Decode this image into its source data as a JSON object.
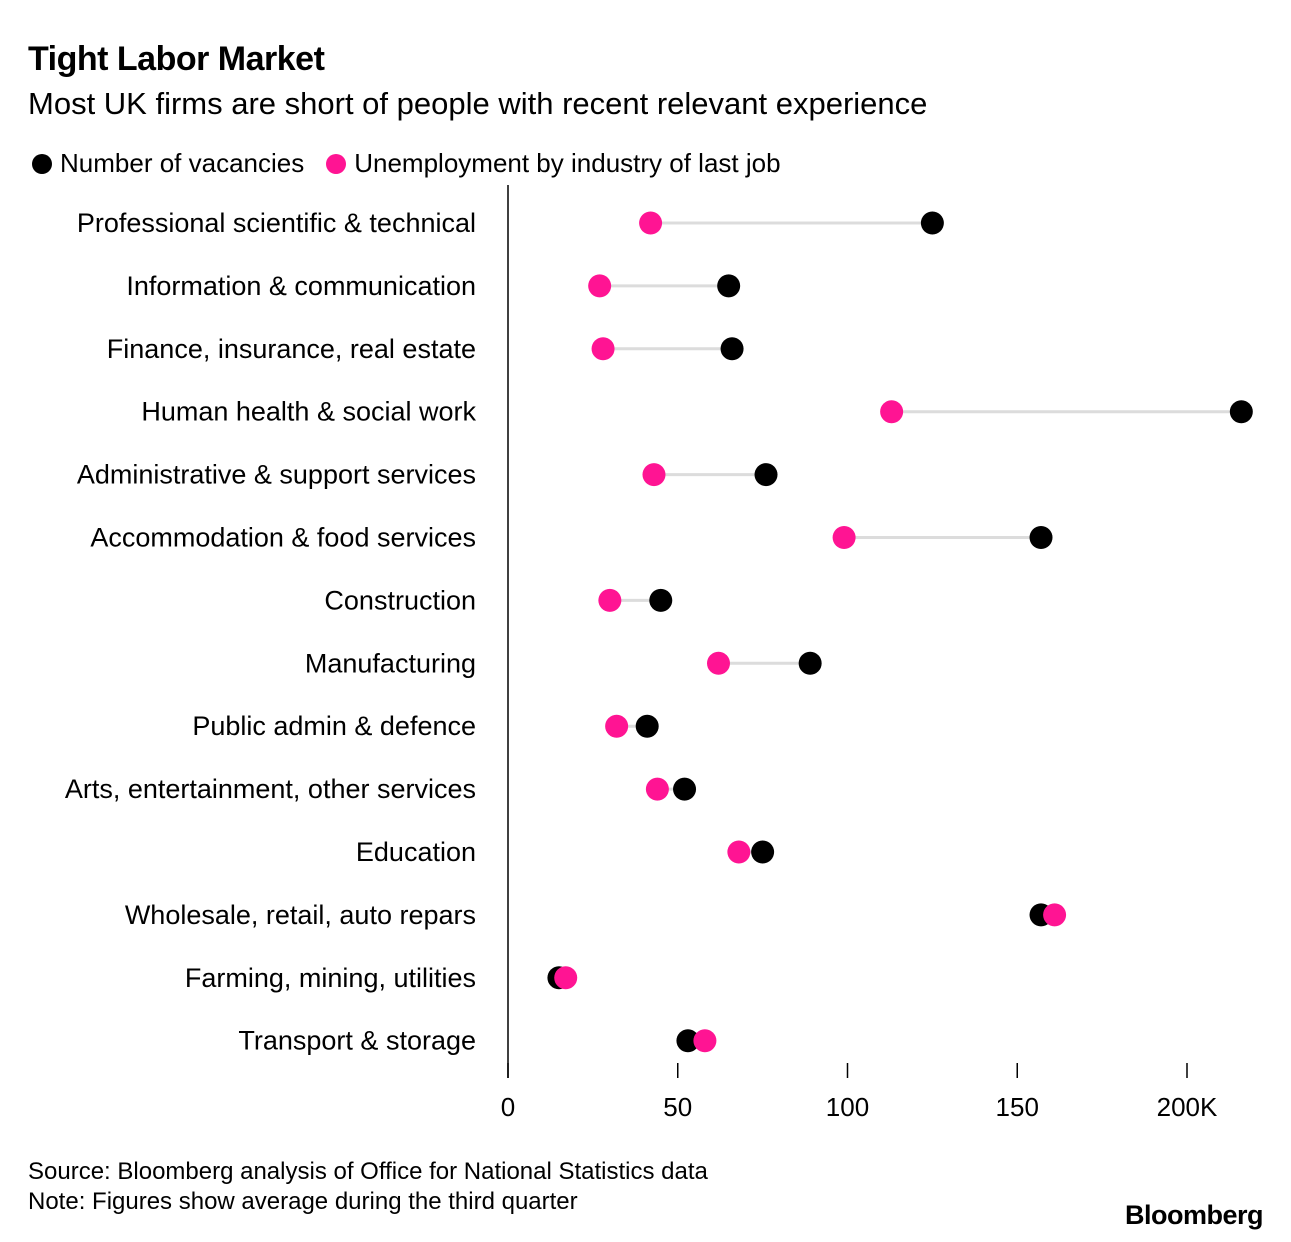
{
  "title": "Tight Labor Market",
  "subtitle": "Most UK firms are short of people with recent relevant experience",
  "legend": [
    {
      "label": "Number of vacancies",
      "color": "#000000"
    },
    {
      "label": "Unemployment by industry of last job",
      "color": "#ff1493"
    }
  ],
  "chart_data": {
    "type": "dumbbell",
    "title": "Tight Labor Market",
    "xlabel": "",
    "ylabel": "",
    "xlim": [
      0,
      220
    ],
    "xticks": [
      0,
      50,
      100,
      150,
      200
    ],
    "xtick_labels": [
      "0",
      "50",
      "100",
      "150",
      "200K"
    ],
    "categories": [
      "Professional scientific & technical",
      "Information & communication",
      "Finance, insurance, real estate",
      "Human health & social work",
      "Administrative & support services",
      "Accommodation & food services",
      "Construction",
      "Manufacturing",
      "Public admin & defence",
      "Arts, entertainment, other services",
      "Education",
      "Wholesale, retail, auto repars",
      "Farming, mining, utilities",
      "Transport & storage"
    ],
    "series": [
      {
        "name": "Number of vacancies",
        "color": "#000000",
        "values": [
          125,
          65,
          66,
          216,
          76,
          157,
          45,
          89,
          41,
          52,
          75,
          157,
          15,
          53
        ]
      },
      {
        "name": "Unemployment by industry of last job",
        "color": "#ff1493",
        "values": [
          42,
          27,
          28,
          113,
          43,
          99,
          30,
          62,
          32,
          44,
          68,
          161,
          17,
          58
        ]
      }
    ]
  },
  "footer": {
    "source": "Source: Bloomberg analysis of Office for National Statistics data",
    "note": "Note: Figures show average during the third quarter",
    "brand": "Bloomberg"
  }
}
